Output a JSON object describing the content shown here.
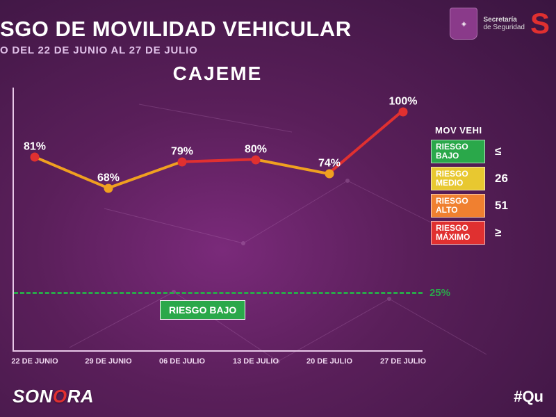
{
  "header": {
    "title": "SGO DE MOVILIDAD VEHICULAR",
    "subtitle": "O DEL 22 DE JUNIO AL 27 DE JULIO"
  },
  "logos": {
    "secretaria_line1": "Secretaría",
    "secretaria_line2": "de Seguridad",
    "s_letter": "S"
  },
  "chart": {
    "type": "line",
    "city": "CAJEME",
    "ylim": [
      0,
      110
    ],
    "threshold_value": 25,
    "threshold_label": "25%",
    "threshold_color": "#2aa84a",
    "riesgo_badge": "RIESGO BAJO",
    "line_width": 4,
    "marker_size": 13,
    "border_color": "#e8c8e8",
    "x_labels": [
      "22 DE JUNIO",
      "29 DE JUNIO",
      "06 DE JULIO",
      "13 DE JULIO",
      "20 DE JULIO",
      "27 DE JULIO"
    ],
    "points": [
      {
        "value": 81,
        "label": "81%",
        "color": "#e03030"
      },
      {
        "value": 68,
        "label": "68%",
        "color": "#f0a020"
      },
      {
        "value": 79,
        "label": "79%",
        "color": "#e03030"
      },
      {
        "value": 80,
        "label": "80%",
        "color": "#e03030"
      },
      {
        "value": 74,
        "label": "74%",
        "color": "#f0a020"
      },
      {
        "value": 100,
        "label": "100%",
        "color": "#e03030"
      }
    ],
    "segment_colors": [
      "#f0a020",
      "#f0a020",
      "#e03030",
      "#f0a020",
      "#e03030"
    ]
  },
  "legend": {
    "header": "MOV\nVEHI",
    "rows": [
      {
        "label1": "RIESGO",
        "label2": "BAJO",
        "color": "#2aa84a",
        "value": "≤"
      },
      {
        "label1": "RIESGO",
        "label2": "MEDIO",
        "color": "#e8c830",
        "value": "26"
      },
      {
        "label1": "RIESGO",
        "label2": "ALTO",
        "color": "#f08030",
        "value": "51"
      },
      {
        "label1": "RIESGO",
        "label2": "MÁXIMO",
        "color": "#e03030",
        "value": "≥"
      }
    ]
  },
  "footer": {
    "brand_a": "SON",
    "brand_b": "O",
    "brand_c": "RA",
    "hashtag": "#Qu"
  }
}
